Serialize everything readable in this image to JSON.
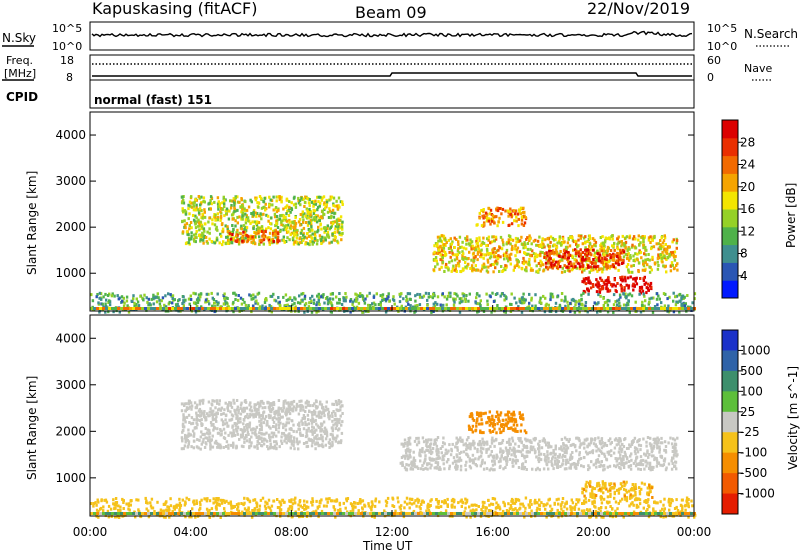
{
  "header": {
    "station": "Kapuskasing (fitACF)",
    "beam": "Beam 09",
    "date": "22/Nov/2019"
  },
  "noise_panel": {
    "left_label": "N.Sky",
    "right_label": "N.Search",
    "ticks_left": [
      "10^5",
      "10^0"
    ],
    "ticks_right": [
      "10^5",
      "10^0"
    ]
  },
  "freq_panel": {
    "left_label_top": "Freq.",
    "left_label_unit": "[MHz]",
    "left_ticks": [
      "18",
      "8"
    ],
    "right_label": "Nave",
    "right_ticks": [
      "60",
      "0"
    ],
    "cpid_label": "CPID",
    "cpid_text": "normal (fast) 151"
  },
  "axes": {
    "ylabel": "Slant Range [km]",
    "yticks": [
      "1000",
      "2000",
      "3000",
      "4000"
    ],
    "ytick_values": [
      1000,
      2000,
      3000,
      4000
    ],
    "ylim": [
      180,
      4500
    ],
    "xlabel": "Time UT",
    "xticks": [
      "00:00",
      "04:00",
      "08:00",
      "12:00",
      "16:00",
      "20:00",
      "00:00"
    ],
    "xtick_hours": [
      0,
      4,
      8,
      12,
      16,
      20,
      24
    ],
    "xlim": [
      0,
      24
    ]
  },
  "power_colorbar": {
    "label": "Power [dB]",
    "tick_labels": [
      "4",
      "8",
      "12",
      "16",
      "20",
      "24",
      "28"
    ],
    "colors": [
      "#0019ff",
      "#2a56b4",
      "#3f8f8f",
      "#4fb24a",
      "#95d127",
      "#f3e500",
      "#f5a400",
      "#f26a00",
      "#ea2f00",
      "#dc0000"
    ]
  },
  "velocity_colorbar": {
    "label": "Velocity [m s^-1]",
    "tick_labels": [
      "1000",
      "500",
      "100",
      "25",
      "-25",
      "-100",
      "-500",
      "-1000"
    ],
    "colors": [
      "#1b31c9",
      "#2f63a8",
      "#3d8f6c",
      "#5dbf3a",
      "#c8c8c3",
      "#f5c21b",
      "#f58e00",
      "#f25a00",
      "#e51d00"
    ]
  },
  "chart_data": [
    {
      "type": "heatmap",
      "title": "",
      "xlabel": "Time UT",
      "ylabel": "Slant Range [km]",
      "zlabel": "Power [dB]",
      "xlim": [
        0,
        24
      ],
      "ylim": [
        180,
        4500
      ],
      "regions": [
        {
          "t0": 3.6,
          "t1": 10.0,
          "r0": 1650,
          "r1": 2700,
          "value": 15
        },
        {
          "t0": 5.5,
          "t1": 7.5,
          "r0": 1700,
          "r1": 1950,
          "value": 23
        },
        {
          "t0": 13.6,
          "t1": 23.3,
          "r0": 1050,
          "r1": 1850,
          "value": 17
        },
        {
          "t0": 18.0,
          "t1": 21.2,
          "r0": 1150,
          "r1": 1550,
          "value": 26
        },
        {
          "t0": 15.3,
          "t1": 17.3,
          "r0": 2050,
          "r1": 2450,
          "value": 21
        },
        {
          "t0": 19.5,
          "t1": 22.3,
          "r0": 600,
          "r1": 950,
          "value": 29
        },
        {
          "t0": 0.0,
          "t1": 24.0,
          "r0": 180,
          "r1": 600,
          "value": 10
        }
      ]
    },
    {
      "type": "heatmap",
      "title": "",
      "xlabel": "Time UT",
      "ylabel": "Slant Range [km]",
      "zlabel": "Velocity [m s^-1]",
      "xlim": [
        0,
        24
      ],
      "ylim": [
        180,
        4500
      ],
      "regions": [
        {
          "t0": 3.6,
          "t1": 10.0,
          "r0": 1650,
          "r1": 2700,
          "value": 0
        },
        {
          "t0": 12.3,
          "t1": 23.3,
          "r0": 1200,
          "r1": 1900,
          "value": 0
        },
        {
          "t0": 15.0,
          "t1": 17.3,
          "r0": 2000,
          "r1": 2450,
          "value": -200
        },
        {
          "t0": 19.5,
          "t1": 22.3,
          "r0": 600,
          "r1": 950,
          "value": -90
        },
        {
          "t0": 0.0,
          "t1": 24.0,
          "r0": 180,
          "r1": 600,
          "value": -50
        }
      ]
    }
  ]
}
